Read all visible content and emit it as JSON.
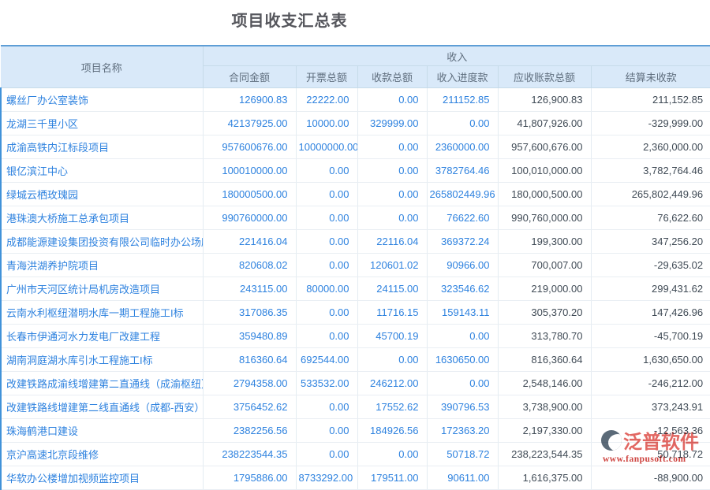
{
  "page": {
    "title": "项目收支汇总表"
  },
  "table": {
    "project_header": "项目名称",
    "income_group_header": "收入",
    "columns": [
      "合同金额",
      "开票总额",
      "收款总额",
      "收入进度款",
      "应收账款总额",
      "结算未收款"
    ],
    "rows": [
      {
        "name": "螺丝厂办公室装饰",
        "values": [
          "126900.83",
          "22222.00",
          "0.00",
          "211152.85",
          "126,900.83",
          "211,152.85"
        ]
      },
      {
        "name": "龙湖三千里小区",
        "values": [
          "42137925.00",
          "10000.00",
          "329999.00",
          "0.00",
          "41,807,926.00",
          "-329,999.00"
        ]
      },
      {
        "name": "成渝高铁内江标段项目",
        "values": [
          "957600676.00",
          "10000000.00",
          "0.00",
          "2360000.00",
          "957,600,676.00",
          "2,360,000.00"
        ]
      },
      {
        "name": "银亿滨江中心",
        "values": [
          "100010000.00",
          "0.00",
          "0.00",
          "3782764.46",
          "100,010,000.00",
          "3,782,764.46"
        ]
      },
      {
        "name": "绿城云栖玫瑰园",
        "values": [
          "180000500.00",
          "0.00",
          "0.00",
          "265802449.96",
          "180,000,500.00",
          "265,802,449.96"
        ]
      },
      {
        "name": "港珠澳大桥施工总承包项目",
        "values": [
          "990760000.00",
          "0.00",
          "0.00",
          "76622.60",
          "990,760,000.00",
          "76,622.60"
        ]
      },
      {
        "name": "成都能源建设集团投资有限公司临时办公场所",
        "values": [
          "221416.04",
          "0.00",
          "22116.04",
          "369372.24",
          "199,300.00",
          "347,256.20"
        ]
      },
      {
        "name": "青海洪湖养护院项目",
        "values": [
          "820608.02",
          "0.00",
          "120601.02",
          "90966.00",
          "700,007.00",
          "-29,635.02"
        ]
      },
      {
        "name": "广州市天河区统计局机房改造项目",
        "values": [
          "243115.00",
          "80000.00",
          "24115.00",
          "323546.62",
          "219,000.00",
          "299,431.62"
        ]
      },
      {
        "name": "云南水利枢纽潜明水库一期工程施工I标",
        "values": [
          "317086.35",
          "0.00",
          "11716.15",
          "159143.11",
          "305,370.20",
          "147,426.96"
        ]
      },
      {
        "name": "长春市伊通河水力发电厂改建工程",
        "values": [
          "359480.89",
          "0.00",
          "45700.19",
          "0.00",
          "313,780.70",
          "-45,700.19"
        ]
      },
      {
        "name": "湖南洞庭湖水库引水工程施工I标",
        "values": [
          "816360.64",
          "692544.00",
          "0.00",
          "1630650.00",
          "816,360.64",
          "1,630,650.00"
        ]
      },
      {
        "name": "改建铁路成渝线增建第二直通线（成渝枢纽）",
        "values": [
          "2794358.00",
          "533532.00",
          "246212.00",
          "0.00",
          "2,548,146.00",
          "-246,212.00"
        ]
      },
      {
        "name": "改建铁路线增建第二线直通线（成都-西安）",
        "values": [
          "3756452.62",
          "0.00",
          "17552.62",
          "390796.53",
          "3,738,900.00",
          "373,243.91"
        ]
      },
      {
        "name": "珠海鹤港口建设",
        "values": [
          "2382256.56",
          "0.00",
          "184926.56",
          "172363.20",
          "2,197,330.00",
          "-12,563.36"
        ]
      },
      {
        "name": "京沪高速北京段维修",
        "values": [
          "238223544.35",
          "0.00",
          "0.00",
          "50718.72",
          "238,223,544.35",
          "50,718.72"
        ]
      },
      {
        "name": "华软办公楼增加视频监控项目",
        "values": [
          "1795886.00",
          "8733292.00",
          "179511.00",
          "90611.00",
          "1,616,375.00",
          "-88,900.00"
        ]
      }
    ]
  },
  "watermark": {
    "brand": "泛普软件",
    "url": "www.fanpusoft.com"
  },
  "colors": {
    "accent_link_blue": "#2e82df",
    "header_bg": "#d9e9f9",
    "header_text": "#5f6e7e",
    "table_top_border": "#5e9ed6",
    "row_left_bar": "#4192d9",
    "dark_text": "#3f4a55",
    "watermark_red": "#e05a54"
  }
}
